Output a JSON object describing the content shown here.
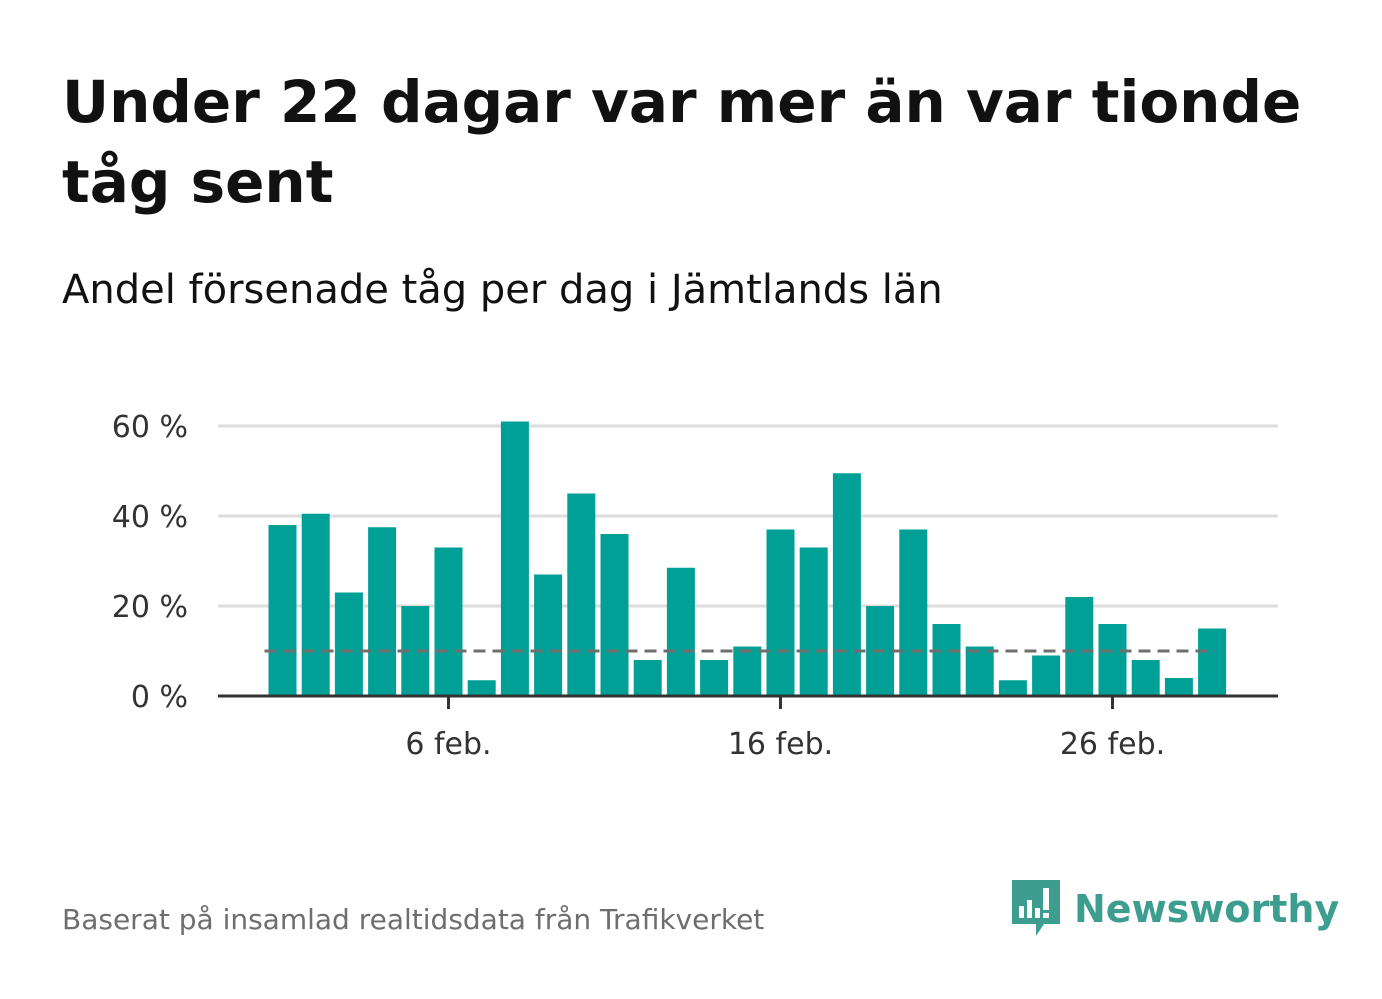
{
  "title": "Under 22 dagar var mer än var tionde tåg sent",
  "subtitle": "Andel försenade tåg per dag i Jämtlands län",
  "source": "Baserat på insamlad realtidsdata från Trafikverket",
  "brand": {
    "name": "Newsworthy",
    "icon": "newsworthy-logo-icon",
    "color": "#3d9e8f"
  },
  "colors": {
    "bar": "#00a096",
    "reference_line": "#6e6e6e",
    "grid": "#dddddd",
    "axis": "#333333"
  },
  "chart_data": {
    "type": "bar",
    "x_axis_type": "date",
    "x": [
      "1 feb.",
      "2 feb.",
      "3 feb.",
      "4 feb.",
      "5 feb.",
      "6 feb.",
      "7 feb.",
      "8 feb.",
      "9 feb.",
      "10 feb.",
      "11 feb.",
      "12 feb.",
      "13 feb.",
      "14 feb.",
      "15 feb.",
      "16 feb.",
      "17 feb.",
      "18 feb.",
      "19 feb.",
      "20 feb.",
      "21 feb.",
      "22 feb.",
      "23 feb.",
      "24 feb.",
      "25 feb.",
      "26 feb.",
      "27 feb.",
      "28 feb.",
      "29 feb."
    ],
    "values": [
      38,
      40.5,
      23,
      37.5,
      20,
      33,
      3.5,
      61,
      27,
      45,
      36,
      8,
      28.5,
      8,
      11,
      37,
      33,
      49.5,
      20,
      37,
      16,
      11,
      3.5,
      9,
      22,
      16,
      8,
      4,
      15
    ],
    "x_ticks": [
      "6 feb.",
      "16 feb.",
      "26 feb."
    ],
    "y_ticks": [
      "0 %",
      "20 %",
      "40 %",
      "60 %"
    ],
    "y_tick_values": [
      0,
      20,
      40,
      60
    ],
    "ylim": [
      0,
      62
    ],
    "reference_line": {
      "value": 10,
      "style": "dashed"
    },
    "grid": true,
    "xlabel": "",
    "ylabel": ""
  }
}
